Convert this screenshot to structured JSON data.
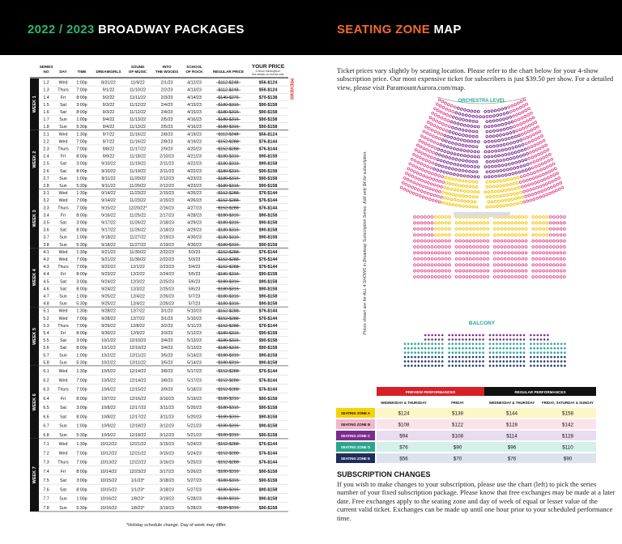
{
  "header": {
    "left_title_year": "2022 / 2023",
    "left_title": "BROADWAY PACKAGES",
    "right_title_accent": "SEATING ZONE",
    "right_title": "MAP"
  },
  "table": {
    "columns": [
      [
        "SERIES",
        "NO"
      ],
      [
        "DAY"
      ],
      [
        "TIME"
      ],
      [
        "DREAMGIRLS"
      ],
      [
        "SOUND",
        "OF MUSIC"
      ],
      [
        "INTO",
        "THE WOODS"
      ],
      [
        "SCHOOL",
        "OF ROCK"
      ],
      [
        "REGULAR PRICE"
      ],
      [
        "YOUR PRICE"
      ]
    ],
    "your_price_note": [
      "4-Show Subscription.",
      "See details on reverse side."
    ],
    "previews_label": "PREVIEWS",
    "weeks": [
      {
        "label": "WEEK 1",
        "rows": [
          [
            "1.2",
            "Wed",
            "1:00p",
            "8/31/22",
            "11/9/22",
            "2/1/23",
            "4/12/23",
            "$112-$248",
            "$56-$124"
          ],
          [
            "1.3",
            "Thurs",
            "7:00p",
            "9/1/22",
            "11/10/22",
            "2/2/23",
            "4/13/23",
            "$112-$248",
            "$56-$124"
          ],
          [
            "1.4",
            "Fri",
            "8:00p",
            "9/2/22",
            "11/11/22",
            "2/3/23",
            "4/14/23",
            "$140-$276",
            "$70-$138"
          ],
          [
            "1.5",
            "Sat",
            "3:00p",
            "9/3/22",
            "11/12/22",
            "2/4/23",
            "4/15/23",
            "$180-$316",
            "$90-$158"
          ],
          [
            "1.6",
            "Sat",
            "8:00p",
            "9/3/22",
            "11/12/22",
            "2/4/23",
            "4/15/23",
            "$180-$316",
            "$90-$158"
          ],
          [
            "1.7",
            "Sun",
            "1:00p",
            "9/4/22",
            "11/13/22",
            "2/5/23",
            "4/16/23",
            "$180-$316",
            "$90-$158"
          ],
          [
            "1.8",
            "Sun",
            "5:30p",
            "9/4/22",
            "11/13/22",
            "2/5/23",
            "4/16/23",
            "$180-$316",
            "$90-$158"
          ]
        ]
      },
      {
        "label": "WEEK 2",
        "rows": [
          [
            "2.1",
            "Wed",
            "1:30p",
            "9/7/22",
            "11/16/22",
            "2/8/23",
            "4/19/23",
            "$112-$248",
            "$56-$124"
          ],
          [
            "2.2",
            "Wed",
            "7:00p",
            "9/7/22",
            "11/16/22",
            "2/8/23",
            "4/19/23",
            "$152-$288",
            "$76-$144"
          ],
          [
            "2.3",
            "Thurs",
            "7:00p",
            "9/8/22",
            "11/17/22",
            "2/9/23",
            "4/20/23",
            "$152-$288",
            "$76-$144"
          ],
          [
            "2.4",
            "Fri",
            "8:00p",
            "9/9/22",
            "11/18/22",
            "2/10/23",
            "4/21/23",
            "$180-$316",
            "$90-$158"
          ],
          [
            "2.5",
            "Sat",
            "3:00p",
            "9/10/22",
            "11/19/22",
            "2/11/23",
            "4/22/23",
            "$180-$316",
            "$90-$158"
          ],
          [
            "2.6",
            "Sat",
            "8:00p",
            "9/10/22",
            "11/19/22",
            "2/11/23",
            "4/22/23",
            "$180-$316",
            "$90-$158"
          ],
          [
            "2.7",
            "Sun",
            "1:00p",
            "9/11/22",
            "11/20/22",
            "2/12/23",
            "4/23/23",
            "$180-$316",
            "$90-$158"
          ],
          [
            "2.8",
            "Sun",
            "5:30p",
            "9/11/22",
            "11/20/22",
            "2/12/23",
            "4/23/23",
            "$180-$316",
            "$90-$158"
          ]
        ]
      },
      {
        "label": "WEEK 3",
        "rows": [
          [
            "3.1",
            "Wed",
            "1:30p",
            "9/14/22",
            "11/23/22",
            "2/15/23",
            "4/26/23",
            "$152-$288",
            "$76-$144"
          ],
          [
            "3.2",
            "Wed",
            "7:00p",
            "9/14/22",
            "11/23/22",
            "2/15/23",
            "4/26/23",
            "$152-$288",
            "$76-$144"
          ],
          [
            "3.3",
            "Thurs",
            "7:00p",
            "9/15/22",
            "12/20/22*",
            "2/16/23",
            "4/27/23",
            "$152-$288",
            "$76-$144"
          ],
          [
            "3.4",
            "Fri",
            "8:00p",
            "9/16/22",
            "11/25/22",
            "2/17/23",
            "4/28/23",
            "$180-$316",
            "$90-$158"
          ],
          [
            "3.5",
            "Sat",
            "3:00p",
            "9/17/22",
            "11/26/22",
            "2/18/23",
            "4/29/23",
            "$180-$316",
            "$90-$158"
          ],
          [
            "3.6",
            "Sat",
            "8:00p",
            "9/17/22",
            "11/26/22",
            "2/18/23",
            "4/29/23",
            "$180-$316",
            "$90-$158"
          ],
          [
            "3.7",
            "Sun",
            "1:00p",
            "9/18/22",
            "11/27/22",
            "2/19/23",
            "4/30/23",
            "$180-$316",
            "$90-$158"
          ],
          [
            "3.8",
            "Sun",
            "5:30p",
            "9/18/22",
            "11/27/22",
            "2/19/23",
            "4/30/23",
            "$180-$316",
            "$90-$158"
          ]
        ]
      },
      {
        "label": "WEEK 4",
        "rows": [
          [
            "4.1",
            "Wed",
            "1:30p",
            "9/21/22",
            "11/30/22",
            "2/22/23",
            "5/3/23",
            "$152-$288",
            "$76-$144"
          ],
          [
            "4.2",
            "Wed",
            "7:00p",
            "9/21/22",
            "11/30/22",
            "2/22/23",
            "5/3/23",
            "$152-$288",
            "$76-$144"
          ],
          [
            "4.3",
            "Thurs",
            "7:00p",
            "9/22/22",
            "12/1/22",
            "2/23/23",
            "5/4/23",
            "$152-$288",
            "$76-$144"
          ],
          [
            "4.4",
            "Fri",
            "8:00p",
            "9/23/22",
            "12/2/22",
            "2/24/23",
            "5/5/23",
            "$180-$316",
            "$90-$158"
          ],
          [
            "4.5",
            "Sat",
            "3:00p",
            "9/24/22",
            "12/3/22",
            "2/25/23",
            "5/6/23",
            "$180-$316",
            "$90-$158"
          ],
          [
            "4.6",
            "Sat",
            "8:00p",
            "9/24/22",
            "12/3/22",
            "2/25/23",
            "5/6/23",
            "$180-$316",
            "$90-$158"
          ],
          [
            "4.7",
            "Sun",
            "1:00p",
            "9/25/22",
            "12/4/22",
            "2/26/23",
            "5/7/23",
            "$180-$316",
            "$90-$158"
          ],
          [
            "4.8",
            "Sun",
            "5:30p",
            "9/25/22",
            "12/4/22",
            "2/26/23",
            "5/7/23",
            "$180-$316",
            "$90-$158"
          ]
        ]
      },
      {
        "label": "WEEK 5",
        "rows": [
          [
            "5.1",
            "Wed",
            "1:30p",
            "9/28/22",
            "12/7/22",
            "3/1/23",
            "5/10/23",
            "$152-$288",
            "$76-$144"
          ],
          [
            "5.2",
            "Wed",
            "7:00p",
            "9/28/22",
            "12/7/22",
            "3/1/23",
            "5/10/23",
            "$152-$288",
            "$76-$144"
          ],
          [
            "5.3",
            "Thurs",
            "7:00p",
            "9/29/22",
            "12/8/22",
            "3/2/23",
            "5/11/23",
            "$152-$288",
            "$76-$144"
          ],
          [
            "5.4",
            "Fri",
            "8:00p",
            "9/30/22",
            "12/9/22",
            "3/3/23",
            "5/12/23",
            "$180-$316",
            "$90-$158"
          ],
          [
            "5.5",
            "Sat",
            "3:00p",
            "10/1/22",
            "12/10/22",
            "3/4/23",
            "5/13/23",
            "$180-$316",
            "$90-$158"
          ],
          [
            "5.6",
            "Sat",
            "8:00p",
            "10/1/22",
            "12/10/22",
            "3/4/23",
            "5/13/23",
            "$180-$316",
            "$90-$158"
          ],
          [
            "5.7",
            "Sun",
            "1:00p",
            "10/2/22",
            "12/11/22",
            "3/5/23",
            "5/14/23",
            "$180-$316",
            "$90-$158"
          ],
          [
            "5.8",
            "Sun",
            "5:30p",
            "10/2/22",
            "12/11/22",
            "3/5/23",
            "5/14/23",
            "$180-$316",
            "$90-$158"
          ]
        ]
      },
      {
        "label": "WEEK 6",
        "rows": [
          [
            "6.1",
            "Wed",
            "1:30p",
            "10/5/22",
            "12/14/22",
            "3/8/23",
            "5/17/23",
            "$152-$288",
            "$76-$144"
          ],
          [
            "6.2",
            "Wed",
            "7:00p",
            "10/5/22",
            "12/14/22",
            "3/8/23",
            "5/17/23",
            "$152-$288",
            "$76-$144"
          ],
          [
            "6.3",
            "Thurs",
            "7:00p",
            "10/6/22",
            "12/15/22",
            "3/9/23",
            "5/18/23",
            "$152-$288",
            "$76-$144"
          ],
          [
            "6.4",
            "Fri",
            "8:00p",
            "10/7/22",
            "12/16/22",
            "3/10/23",
            "5/19/23",
            "$180-$316",
            "$90-$158"
          ],
          [
            "6.5",
            "Sat",
            "3:00p",
            "10/8/22",
            "12/17/22",
            "3/11/23",
            "5/20/23",
            "$180-$316",
            "$90-$158"
          ],
          [
            "6.6",
            "Sat",
            "8:00p",
            "10/8/22",
            "12/17/22",
            "3/11/23",
            "5/20/23",
            "$180-$316",
            "$90-$158"
          ],
          [
            "6.7",
            "Sun",
            "1:00p",
            "10/9/22",
            "12/18/22",
            "3/12/23",
            "5/21/23",
            "$180-$316",
            "$90-$158"
          ],
          [
            "6.8",
            "Sun",
            "5:30p",
            "10/9/22",
            "12/18/22",
            "3/12/23",
            "5/21/23",
            "$180-$316",
            "$90-$158"
          ]
        ]
      },
      {
        "label": "WEEK 7",
        "rows": [
          [
            "7.1",
            "Wed",
            "1:30p",
            "10/12/22",
            "12/21/22",
            "3/15/23",
            "5/24/23",
            "$152-$288",
            "$76-$144"
          ],
          [
            "7.2",
            "Wed",
            "7:00p",
            "10/12/22",
            "12/21/22",
            "3/15/23",
            "5/24/23",
            "$152-$288",
            "$76-$144"
          ],
          [
            "7.3",
            "Thurs",
            "7:00p",
            "10/13/22",
            "12/22/22",
            "3/16/23",
            "5/25/23",
            "$152-$288",
            "$76-$144"
          ],
          [
            "7.4",
            "Fri",
            "8:00p",
            "10/14/22",
            "12/23/22",
            "3/17/23",
            "5/26/23",
            "$180-$316",
            "$90-$158"
          ],
          [
            "7.5",
            "Sat",
            "3:00p",
            "10/15/22",
            "1/1/23*",
            "3/18/23",
            "5/27/23",
            "$180-$316",
            "$90-$158"
          ],
          [
            "7.6",
            "Sat",
            "8:00p",
            "10/15/22",
            "1/1/23*",
            "3/18/23",
            "5/27/23",
            "$180-$316",
            "$90-$158"
          ],
          [
            "7.7",
            "Sun",
            "1:00p",
            "10/16/22",
            "1/8/23*",
            "3/19/23",
            "5/28/23",
            "$180-$316",
            "$90-$158"
          ],
          [
            "7.8",
            "Sun",
            "5:30p",
            "10/16/22",
            "1/8/23*",
            "3/19/23",
            "5/28/23",
            "$180-$316",
            "$90-$158"
          ]
        ]
      }
    ],
    "footnote": "*Holiday schedule change. Day of week may differ."
  },
  "intro": "Ticket prices vary slightly by seating location. Please refer to the chart below for your 4-show subscription price. Our most expensive ticket for subscribers is just $39.50 per show. For a detailed view, please visit ParamountAurora.com/map.",
  "side_note": "Prices shown are for ALL 4 SHOWS in Broadway Subscription Series. Add only $4 for subscription.",
  "map": {
    "orchestra": "ORCHESTRA LEVEL",
    "balcony": "BALCONY"
  },
  "zones": {
    "groups": [
      "PREVIEW PERFORMANCES",
      "REGULAR PERFORMANCES"
    ],
    "days": [
      "WEDNESDAY & THURSDAY",
      "FRIDAY",
      "WEDNESDAY & THURSDAY",
      "FRIDAY, SATURDAY & SUNDAY"
    ],
    "rows": [
      {
        "name": "SEATING ZONE A",
        "prices": [
          "$124",
          "$138",
          "$144",
          "$158"
        ]
      },
      {
        "name": "SEATING ZONE B",
        "prices": [
          "$108",
          "$122",
          "$128",
          "$142"
        ]
      },
      {
        "name": "SEATING ZONE C",
        "prices": [
          "$94",
          "$108",
          "$114",
          "$128"
        ]
      },
      {
        "name": "SEATING ZONE D",
        "prices": [
          "$76",
          "$90",
          "$96",
          "$110"
        ]
      },
      {
        "name": "SEATING ZONE E",
        "prices": [
          "$56",
          "$70",
          "$76",
          "$90"
        ]
      }
    ]
  },
  "changes": {
    "title": "SUBSCRIPTION CHANGES",
    "text": "If you wish to make changes to your subscription, please use the chart (left) to pick the series number of your fixed subscription package. Please know that free exchanges may be made at a later date. Free exchanges apply to the seating zone and day of week of equal or lesser value of the current valid ticket. Exchanges can be made up until one hour prior to your scheduled performance time."
  }
}
